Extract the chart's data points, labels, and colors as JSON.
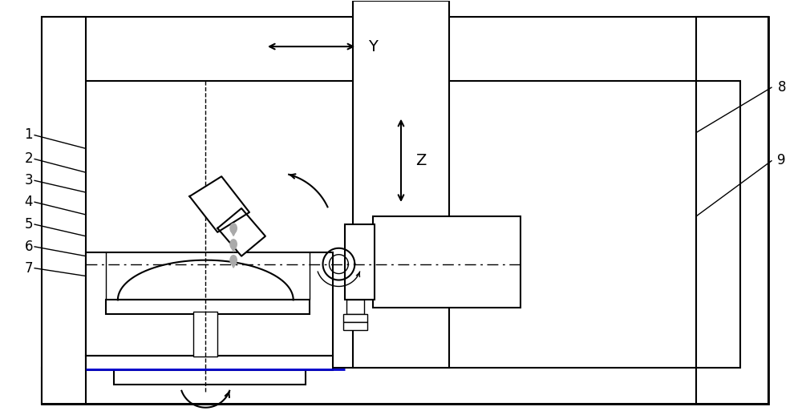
{
  "fig_width": 10.0,
  "fig_height": 5.23,
  "dpi": 100,
  "bg_color": "#ffffff",
  "lc": "#000000",
  "bc": "#0000cc",
  "gc": "#aaaaaa",
  "lw": 1.5,
  "tlw": 1.0
}
